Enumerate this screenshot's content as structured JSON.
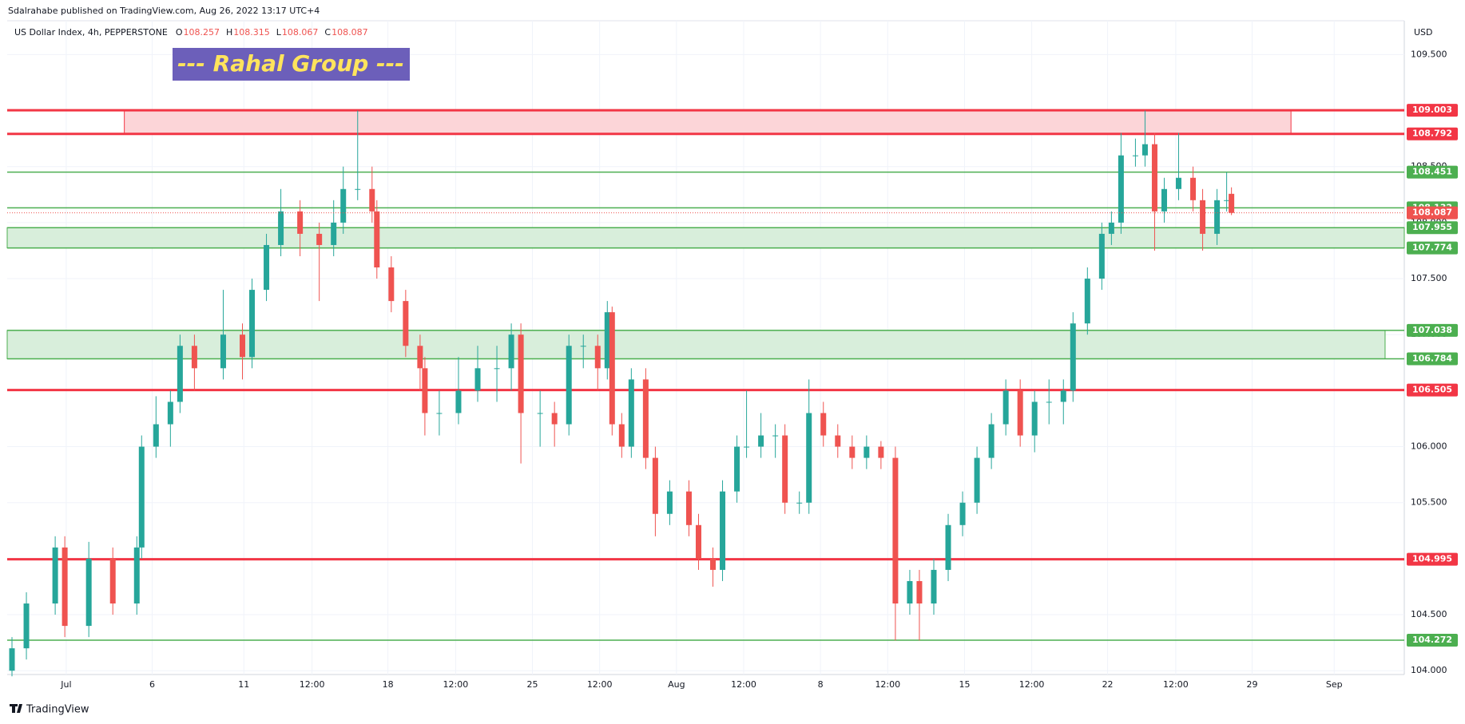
{
  "header": {
    "published": "Sdalrahabe published on TradingView.com, Aug 26, 2022 13:17 UTC+4",
    "symbol": "US Dollar Index, 4h, PEPPERSTONE",
    "ohlc_labels": [
      "O",
      "H",
      "L",
      "C"
    ],
    "banner": "--- Rahal Group ---",
    "currency": "USD",
    "footer": "TradingView"
  },
  "chart_data": {
    "type": "candlestick",
    "up_color": "#26a69a",
    "down_color": "#ef5350",
    "grid": true,
    "xlim": [
      0,
      291
    ],
    "ylim": [
      103.966,
      109.802
    ],
    "xticks": [
      {
        "value": 12.3,
        "label": "Jul"
      },
      {
        "value": 30.2,
        "label": "6"
      },
      {
        "value": 49.3,
        "label": "11"
      },
      {
        "value": 63.5,
        "label": "12:00"
      },
      {
        "value": 79.3,
        "label": "18"
      },
      {
        "value": 93.4,
        "label": "12:00"
      },
      {
        "value": 109.4,
        "label": "25"
      },
      {
        "value": 123.4,
        "label": "12:00"
      },
      {
        "value": 139.4,
        "label": "Aug"
      },
      {
        "value": 153.4,
        "label": "12:00"
      },
      {
        "value": 169.4,
        "label": "8"
      },
      {
        "value": 183.4,
        "label": "12:00"
      },
      {
        "value": 199.4,
        "label": "15"
      },
      {
        "value": 213.4,
        "label": "12:00"
      },
      {
        "value": 229.2,
        "label": "22"
      },
      {
        "value": 243.4,
        "label": "12:00"
      },
      {
        "value": 259.3,
        "label": "29"
      },
      {
        "value": 276.4,
        "label": "Sep"
      }
    ],
    "yticks": [
      {
        "value": 104,
        "label": "104.000"
      },
      {
        "value": 104.5,
        "label": "104.500"
      },
      {
        "value": 105,
        "label": "105.000"
      },
      {
        "value": 105.5,
        "label": "105.500"
      },
      {
        "value": 106,
        "label": "106.000"
      },
      {
        "value": 106.5,
        "label": "106.500"
      },
      {
        "value": 107,
        "label": "107.000"
      },
      {
        "value": 107.5,
        "label": "107.500"
      },
      {
        "value": 108,
        "label": "108.000"
      },
      {
        "value": 108.5,
        "label": "108.500"
      },
      {
        "value": 109,
        "label": "109.000"
      },
      {
        "value": 109.5,
        "label": "109.500"
      }
    ],
    "zones": [
      {
        "from": 108.792,
        "to": 109.003,
        "x": [
          24.4,
          267.4
        ],
        "color": "#fcd5d8",
        "edge": "#f23645"
      },
      {
        "from": 107.774,
        "to": 107.955,
        "color": "#d8eedb",
        "edge": "#4caf50"
      },
      {
        "from": 106.784,
        "to": 107.038,
        "x": [
          0,
          287
        ],
        "color": "#d8eedb",
        "edge": "#4caf50"
      }
    ],
    "levels": [
      {
        "value": 109.003,
        "color": "#f23645",
        "width": 3
      },
      {
        "value": 108.792,
        "color": "#f23645",
        "width": 3
      },
      {
        "value": 108.451,
        "color": "#4caf50",
        "width": 1.5
      },
      {
        "value": 108.132,
        "color": "#4caf50",
        "width": 1.5
      },
      {
        "value": 107.955,
        "color": "#4caf50",
        "width": 1.5
      },
      {
        "value": 107.774,
        "color": "#4caf50",
        "width": 1.5
      },
      {
        "value": 107.038,
        "color": "#4caf50",
        "width": 1.5
      },
      {
        "value": 106.784,
        "color": "#4caf50",
        "width": 1.5
      },
      {
        "value": 106.505,
        "color": "#f23645",
        "width": 3
      },
      {
        "value": 104.995,
        "color": "#f23645",
        "width": 3
      },
      {
        "value": 104.272,
        "color": "#4caf50",
        "width": 1.5
      }
    ],
    "x": [
      1,
      4,
      10,
      12,
      17,
      22,
      27,
      28,
      31,
      34,
      36,
      39,
      45,
      49,
      51,
      54,
      57,
      61,
      65,
      68,
      70,
      73,
      76,
      77,
      80,
      83,
      86,
      87,
      90,
      94,
      98,
      102,
      105,
      107,
      111,
      114,
      117,
      120,
      123,
      125,
      126,
      128,
      130,
      133,
      135,
      138,
      142,
      144,
      147,
      149,
      152,
      154,
      157,
      160,
      162,
      165,
      167,
      170,
      173,
      176,
      179,
      182,
      185,
      188,
      190,
      193,
      196,
      199,
      202,
      205,
      208,
      211,
      214,
      217,
      220,
      222,
      225,
      228,
      230,
      232,
      235,
      237,
      239,
      241,
      244,
      247,
      249,
      252,
      254,
      255
    ],
    "candles": [
      [
        104.0,
        104.3,
        103.95,
        104.2
      ],
      [
        104.2,
        104.7,
        104.1,
        104.6
      ],
      [
        104.6,
        105.2,
        104.5,
        105.1
      ],
      [
        105.1,
        105.2,
        104.3,
        104.4
      ],
      [
        104.4,
        105.15,
        104.3,
        105.0
      ],
      [
        105.0,
        105.1,
        104.5,
        104.6
      ],
      [
        104.6,
        105.2,
        104.5,
        105.1
      ],
      [
        105.1,
        106.1,
        105.0,
        106.0
      ],
      [
        106.0,
        106.45,
        105.9,
        106.2
      ],
      [
        106.2,
        106.5,
        106.0,
        106.4
      ],
      [
        106.4,
        107.0,
        106.3,
        106.9
      ],
      [
        106.9,
        107.0,
        106.5,
        106.7
      ],
      [
        106.7,
        107.4,
        106.6,
        107.0
      ],
      [
        107.0,
        107.1,
        106.6,
        106.8
      ],
      [
        106.8,
        107.5,
        106.7,
        107.4
      ],
      [
        107.4,
        107.9,
        107.3,
        107.8
      ],
      [
        107.8,
        108.3,
        107.7,
        108.1
      ],
      [
        108.1,
        108.2,
        107.7,
        107.9
      ],
      [
        107.9,
        108.0,
        107.3,
        107.8
      ],
      [
        107.8,
        108.2,
        107.7,
        108.0
      ],
      [
        108.0,
        108.5,
        107.9,
        108.3
      ],
      [
        108.3,
        109.0,
        108.2,
        108.3
      ],
      [
        108.3,
        108.5,
        108.0,
        108.1
      ],
      [
        108.1,
        108.2,
        107.5,
        107.6
      ],
      [
        107.6,
        107.7,
        107.2,
        107.3
      ],
      [
        107.3,
        107.4,
        106.8,
        106.9
      ],
      [
        106.9,
        107.0,
        106.5,
        106.7
      ],
      [
        106.7,
        106.8,
        106.1,
        106.3
      ],
      [
        106.3,
        106.5,
        106.1,
        106.3
      ],
      [
        106.3,
        106.8,
        106.2,
        106.5
      ],
      [
        106.5,
        106.9,
        106.4,
        106.7
      ],
      [
        106.7,
        106.9,
        106.4,
        106.7
      ],
      [
        106.7,
        107.1,
        106.5,
        107.0
      ],
      [
        107.0,
        107.1,
        105.85,
        106.3
      ],
      [
        106.3,
        106.5,
        106.0,
        106.3
      ],
      [
        106.3,
        106.4,
        106.0,
        106.2
      ],
      [
        106.2,
        107.0,
        106.1,
        106.9
      ],
      [
        106.9,
        107.0,
        106.7,
        106.9
      ],
      [
        106.9,
        107.0,
        106.5,
        106.7
      ],
      [
        106.7,
        107.3,
        106.6,
        107.2
      ],
      [
        107.2,
        107.25,
        106.1,
        106.2
      ],
      [
        106.2,
        106.3,
        105.9,
        106.0
      ],
      [
        106.0,
        106.7,
        105.9,
        106.6
      ],
      [
        106.6,
        106.7,
        105.8,
        105.9
      ],
      [
        105.9,
        106.0,
        105.2,
        105.4
      ],
      [
        105.4,
        105.7,
        105.3,
        105.6
      ],
      [
        105.6,
        105.7,
        105.2,
        105.3
      ],
      [
        105.3,
        105.4,
        104.9,
        105.0
      ],
      [
        105.0,
        105.1,
        104.75,
        104.9
      ],
      [
        104.9,
        105.7,
        104.8,
        105.6
      ],
      [
        105.6,
        106.1,
        105.5,
        106.0
      ],
      [
        106.0,
        106.5,
        105.9,
        106.0
      ],
      [
        106.0,
        106.3,
        105.9,
        106.1
      ],
      [
        106.1,
        106.2,
        105.9,
        106.1
      ],
      [
        106.1,
        106.2,
        105.4,
        105.5
      ],
      [
        105.5,
        105.6,
        105.4,
        105.5
      ],
      [
        105.5,
        106.6,
        105.4,
        106.3
      ],
      [
        106.3,
        106.4,
        106.0,
        106.1
      ],
      [
        106.1,
        106.2,
        105.9,
        106.0
      ],
      [
        106.0,
        106.1,
        105.8,
        105.9
      ],
      [
        105.9,
        106.1,
        105.8,
        106.0
      ],
      [
        106.0,
        106.05,
        105.8,
        105.9
      ],
      [
        105.9,
        106.0,
        104.27,
        104.6
      ],
      [
        104.6,
        104.9,
        104.5,
        104.8
      ],
      [
        104.8,
        104.9,
        104.27,
        104.6
      ],
      [
        104.6,
        105.0,
        104.5,
        104.9
      ],
      [
        104.9,
        105.4,
        104.8,
        105.3
      ],
      [
        105.3,
        105.6,
        105.2,
        105.5
      ],
      [
        105.5,
        106.0,
        105.4,
        105.9
      ],
      [
        105.9,
        106.3,
        105.8,
        106.2
      ],
      [
        106.2,
        106.6,
        106.1,
        106.5
      ],
      [
        106.5,
        106.6,
        106.0,
        106.1
      ],
      [
        106.1,
        106.5,
        105.95,
        106.4
      ],
      [
        106.4,
        106.6,
        106.2,
        106.4
      ],
      [
        106.4,
        106.6,
        106.2,
        106.5
      ],
      [
        106.5,
        107.2,
        106.4,
        107.1
      ],
      [
        107.1,
        107.6,
        107.0,
        107.5
      ],
      [
        107.5,
        108.0,
        107.4,
        107.9
      ],
      [
        107.9,
        108.1,
        107.8,
        108.0
      ],
      [
        108.0,
        108.8,
        107.9,
        108.6
      ],
      [
        108.6,
        108.75,
        108.5,
        108.6
      ],
      [
        108.6,
        109.0,
        108.5,
        108.7
      ],
      [
        108.7,
        108.8,
        107.75,
        108.1
      ],
      [
        108.1,
        108.4,
        108.0,
        108.3
      ],
      [
        108.3,
        108.8,
        108.2,
        108.4
      ],
      [
        108.4,
        108.5,
        108.1,
        108.2
      ],
      [
        108.2,
        108.3,
        107.75,
        107.9
      ],
      [
        107.9,
        108.3,
        107.8,
        108.2
      ],
      [
        108.2,
        108.45,
        108.1,
        108.2
      ],
      [
        108.257,
        108.315,
        108.067,
        108.087
      ]
    ]
  }
}
